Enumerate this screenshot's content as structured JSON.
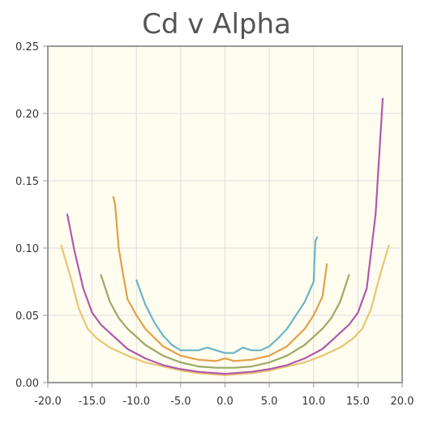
{
  "chart_data": {
    "type": "line",
    "title": "Cd v Alpha",
    "xlabel": "",
    "ylabel": "",
    "xlim": [
      -20,
      20
    ],
    "ylim": [
      0,
      0.25
    ],
    "grid": true,
    "x_ticks": [
      "-20.0",
      "-15.0",
      "-10.0",
      "-5.0",
      "0.0",
      "5.0",
      "10.0",
      "15.0",
      "20.0"
    ],
    "y_ticks": [
      "0.00",
      "0.05",
      "0.10",
      "0.15",
      "0.20",
      "0.25"
    ],
    "background_color": "#fffdf0",
    "series": [
      {
        "color": "#e8c572",
        "x": [
          -18.5,
          -17.5,
          -16.5,
          -15.5,
          -14.5,
          -13,
          -11,
          -9,
          -7,
          -5,
          -3,
          -1,
          0,
          1,
          3,
          5,
          7,
          9,
          11,
          13,
          14.5,
          15.5,
          16.5,
          17.5,
          18.5
        ],
        "y": [
          0.102,
          0.08,
          0.055,
          0.04,
          0.033,
          0.026,
          0.02,
          0.015,
          0.012,
          0.009,
          0.007,
          0.006,
          0.0055,
          0.006,
          0.007,
          0.009,
          0.012,
          0.015,
          0.02,
          0.026,
          0.033,
          0.04,
          0.055,
          0.08,
          0.102
        ]
      },
      {
        "color": "#b05aaa",
        "x": [
          -17.8,
          -17,
          -16,
          -15,
          -14,
          -12.5,
          -11,
          -9,
          -7,
          -5,
          -3,
          -1,
          0,
          1,
          3,
          5,
          7,
          9,
          11,
          12.5,
          14,
          15,
          16,
          17,
          17.8
        ],
        "y": [
          0.125,
          0.098,
          0.07,
          0.052,
          0.043,
          0.034,
          0.025,
          0.018,
          0.013,
          0.01,
          0.008,
          0.007,
          0.0065,
          0.007,
          0.008,
          0.01,
          0.013,
          0.018,
          0.025,
          0.034,
          0.043,
          0.052,
          0.07,
          0.125,
          0.211
        ]
      },
      {
        "color": "#9aaa68",
        "x": [
          -14,
          -13,
          -12,
          -11,
          -9,
          -7,
          -5,
          -3,
          -1,
          0,
          1,
          3,
          5,
          7,
          9,
          11,
          12,
          13,
          14
        ],
        "y": [
          0.08,
          0.06,
          0.048,
          0.04,
          0.028,
          0.02,
          0.015,
          0.012,
          0.011,
          0.011,
          0.011,
          0.012,
          0.015,
          0.02,
          0.028,
          0.04,
          0.048,
          0.06,
          0.08
        ]
      },
      {
        "color": "#e3a047",
        "x": [
          -12.6,
          -12.4,
          -12,
          -11.5,
          -11,
          -10,
          -9,
          -7,
          -5,
          -3,
          -1,
          0,
          1,
          3,
          5,
          7,
          9,
          10,
          11,
          11.5
        ],
        "y": [
          0.138,
          0.132,
          0.1,
          0.08,
          0.062,
          0.05,
          0.04,
          0.027,
          0.02,
          0.017,
          0.016,
          0.018,
          0.016,
          0.017,
          0.02,
          0.027,
          0.04,
          0.05,
          0.064,
          0.088
        ]
      },
      {
        "color": "#6bb5c8",
        "x": [
          -10,
          -9,
          -8,
          -7,
          -6,
          -5,
          -4,
          -3,
          -2,
          -1,
          0,
          1,
          2,
          3,
          4,
          5,
          6,
          7,
          8,
          9,
          10,
          10.2,
          10.4
        ],
        "y": [
          0.076,
          0.058,
          0.045,
          0.035,
          0.028,
          0.024,
          0.024,
          0.024,
          0.026,
          0.024,
          0.022,
          0.022,
          0.026,
          0.024,
          0.024,
          0.027,
          0.033,
          0.04,
          0.05,
          0.06,
          0.075,
          0.105,
          0.108
        ]
      }
    ]
  }
}
